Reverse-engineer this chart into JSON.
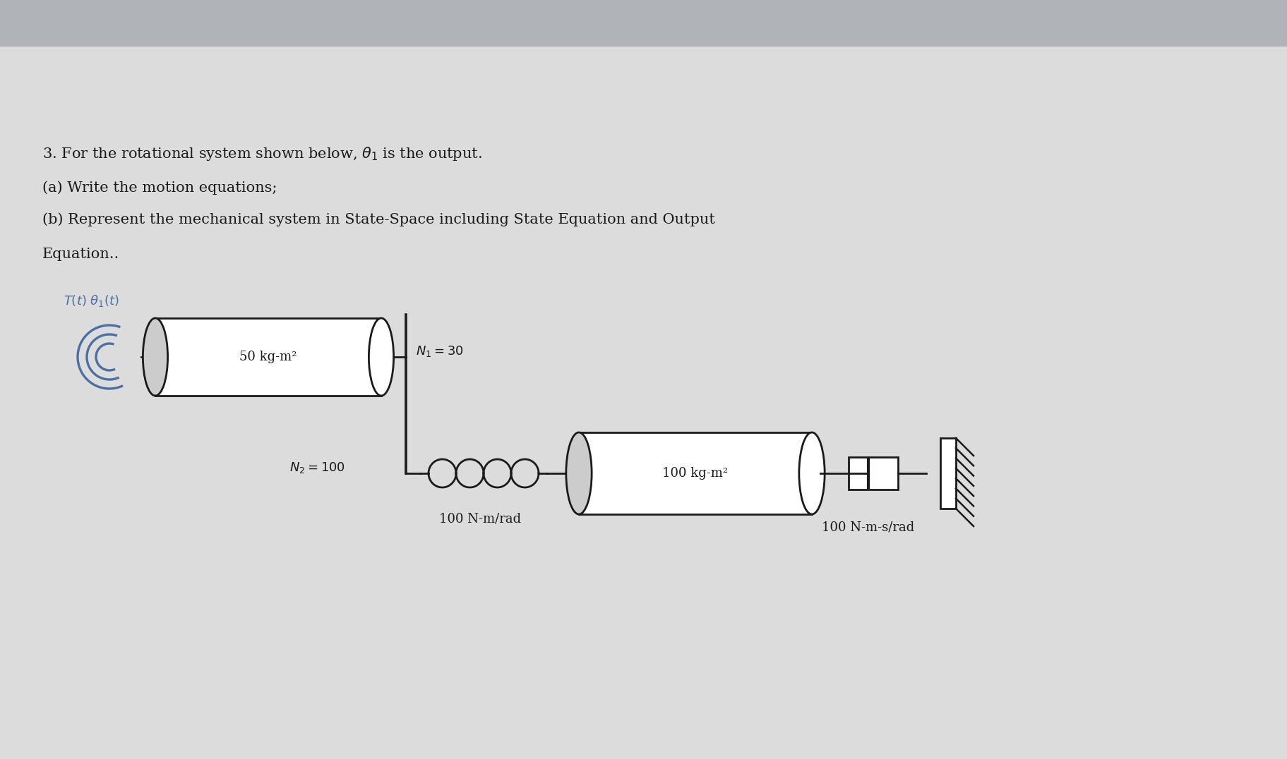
{
  "bg_color": "#c8c8c8",
  "page_color": "#dcdcdc",
  "text_color": "#1a1a1a",
  "line_color": "#1a1a1a",
  "blue_label_color": "#4a6fa5",
  "title_line1": "3. For the rotational system shown below, θ/ is the output.",
  "title_line2": "(a) Write the motion equations;",
  "title_line3": "(b) Represent the mechanical system in State-Space including State Equation and Output",
  "title_line4": "Equation..",
  "label_T": "T(t) θ₁(t)",
  "label_J1": "50 kg-m²",
  "label_N1": "N₁ = 30",
  "label_N2": "N₂ = 100",
  "label_spring": "100 N-m/rad",
  "label_J2": "100 kg-m²",
  "label_damper": "100 N-m-s/rad",
  "fontsize_text": 15,
  "fontsize_diagram": 13
}
